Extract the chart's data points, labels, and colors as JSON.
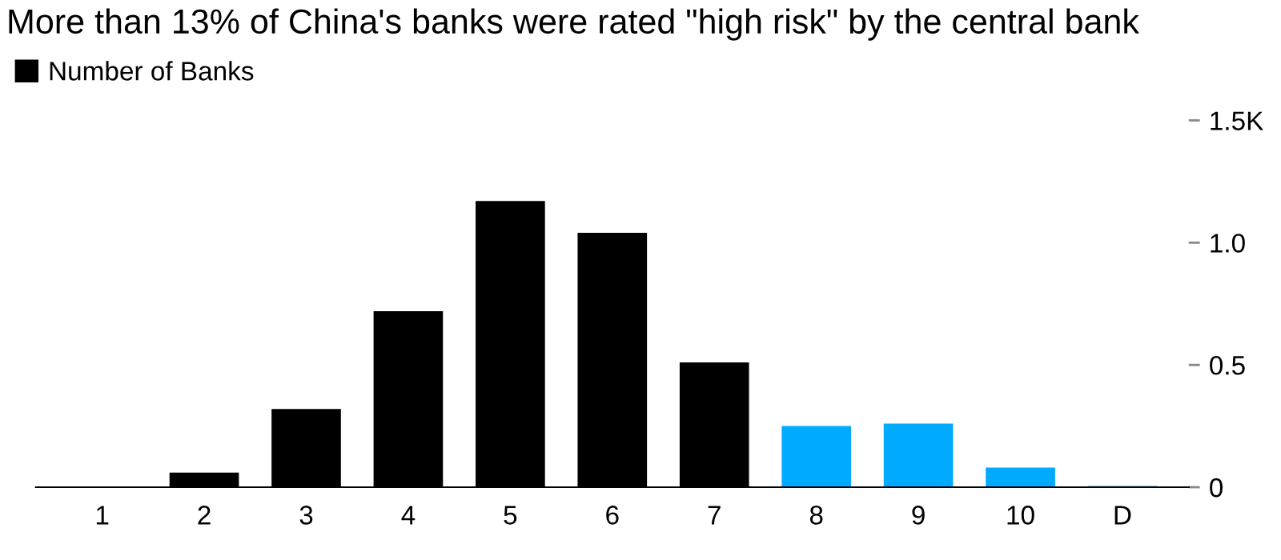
{
  "chart_data": {
    "type": "bar",
    "title": "More than 13% of China's banks were rated \"high risk\" by the central bank",
    "categories": [
      "1",
      "2",
      "3",
      "4",
      "5",
      "6",
      "7",
      "8",
      "9",
      "10",
      "D"
    ],
    "series": [
      {
        "name": "Number of Banks",
        "color": "#000000",
        "values": [
          0.003,
          0.06,
          0.32,
          0.72,
          1.17,
          1.04,
          0.51,
          0.25,
          0.26,
          0.08,
          0.005
        ],
        "colors": [
          "#000000",
          "#000000",
          "#000000",
          "#000000",
          "#000000",
          "#000000",
          "#000000",
          "#00aaff",
          "#00aaff",
          "#00aaff",
          "#00aaff"
        ]
      }
    ],
    "ylim": [
      0,
      1.5
    ],
    "yticks": [
      0,
      0.5,
      {
        "value": 1.0,
        "label": "1.0"
      },
      {
        "value": 1.5,
        "label": "1.5K"
      }
    ],
    "legend": "top left",
    "grid": false
  }
}
